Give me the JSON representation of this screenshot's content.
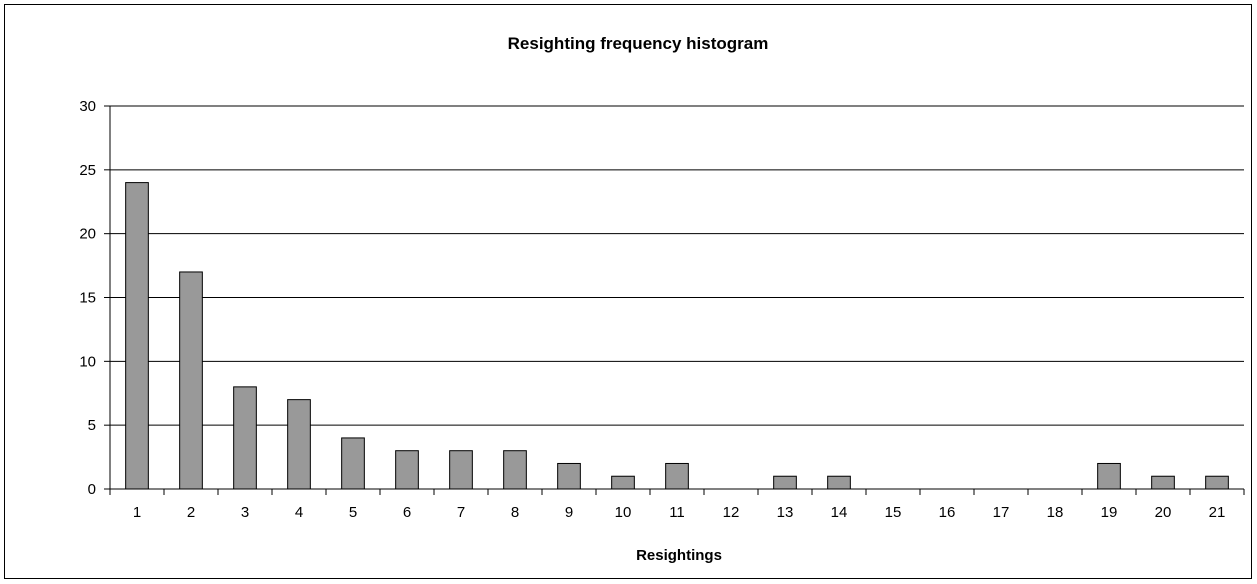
{
  "chart_data": {
    "type": "bar",
    "title": "Resighting frequency histogram",
    "xlabel": "Resightings",
    "ylabel": "",
    "categories": [
      "1",
      "2",
      "3",
      "4",
      "5",
      "6",
      "7",
      "8",
      "9",
      "10",
      "11",
      "12",
      "13",
      "14",
      "15",
      "16",
      "17",
      "18",
      "19",
      "20",
      "21"
    ],
    "values": [
      24,
      17,
      8,
      7,
      4,
      3,
      3,
      3,
      2,
      1,
      2,
      0,
      1,
      1,
      0,
      0,
      0,
      0,
      2,
      1,
      1
    ],
    "ylim": [
      0,
      30
    ],
    "yticks": [
      0,
      5,
      10,
      15,
      20,
      25,
      30
    ],
    "grid": true,
    "legend": "none",
    "colors": {
      "bar_fill": "#999999",
      "bar_stroke": "#000000",
      "grid": "#000000",
      "axis": "#000000"
    }
  }
}
